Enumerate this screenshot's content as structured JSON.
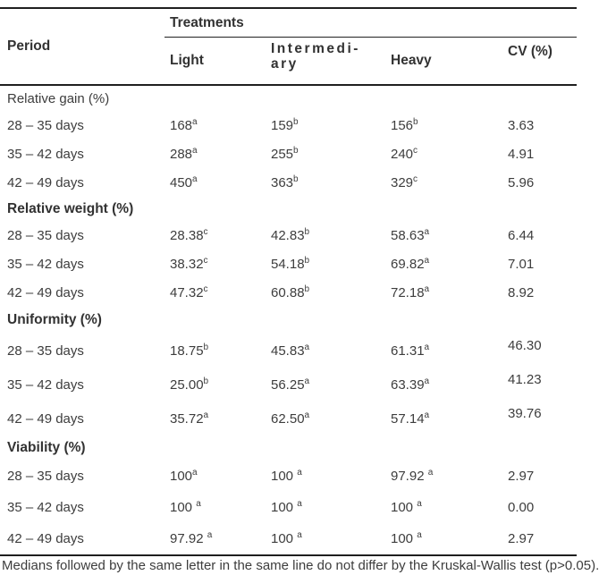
{
  "table": {
    "header": {
      "period": "Period",
      "treatments": "Treatments",
      "columns": [
        "Light",
        "Intermedi-\nary",
        "Heavy",
        "CV (%)"
      ]
    },
    "sections": [
      {
        "title": "Relative gain (%)",
        "bold": false,
        "rows": [
          {
            "period": "28 – 35 days",
            "cells": [
              {
                "v": "168",
                "s": "a"
              },
              {
                "v": "159",
                "s": "b"
              },
              {
                "v": "156",
                "s": "b"
              }
            ],
            "cv": "3.63"
          },
          {
            "period": "35 – 42 days",
            "cells": [
              {
                "v": "288",
                "s": "a"
              },
              {
                "v": "255",
                "s": "b"
              },
              {
                "v": "240",
                "s": "c"
              }
            ],
            "cv": "4.91"
          },
          {
            "period": "42 – 49 days",
            "cells": [
              {
                "v": "450",
                "s": "a"
              },
              {
                "v": "363",
                "s": "b"
              },
              {
                "v": "329",
                "s": "c"
              }
            ],
            "cv": "5.96"
          }
        ]
      },
      {
        "title": "Relative weight (%)",
        "bold": true,
        "rows": [
          {
            "period": "28 – 35 days",
            "cells": [
              {
                "v": "28.38",
                "s": "c"
              },
              {
                "v": "42.83",
                "s": "b"
              },
              {
                "v": "58.63",
                "s": "a"
              }
            ],
            "cv": "6.44"
          },
          {
            "period": "35 – 42 days",
            "cells": [
              {
                "v": "38.32",
                "s": "c"
              },
              {
                "v": "54.18",
                "s": "b"
              },
              {
                "v": "69.82",
                "s": "a"
              }
            ],
            "cv": "7.01"
          },
          {
            "period": "42 – 49 days",
            "cells": [
              {
                "v": "47.32",
                "s": "c"
              },
              {
                "v": "60.88",
                "s": "b"
              },
              {
                "v": "72.18",
                "s": "a"
              }
            ],
            "cv": "8.92"
          }
        ]
      },
      {
        "title": "Uniformity (%)",
        "bold": true,
        "cv_raised": true,
        "rows": [
          {
            "period": "28 – 35 days",
            "cells": [
              {
                "v": "18.75",
                "s": "b"
              },
              {
                "v": "45.83",
                "s": "a"
              },
              {
                "v": "61.31",
                "s": "a"
              }
            ],
            "cv": "46.30"
          },
          {
            "period": "35 – 42 days",
            "cells": [
              {
                "v": "25.00",
                "s": "b"
              },
              {
                "v": "56.25",
                "s": "a"
              },
              {
                "v": "63.39",
                "s": "a"
              }
            ],
            "cv": "41.23"
          },
          {
            "period": "42 – 49 days",
            "cells": [
              {
                "v": "35.72",
                "s": "a"
              },
              {
                "v": "62.50",
                "s": "a"
              },
              {
                "v": "57.14",
                "s": "a"
              }
            ],
            "cv": "39.76"
          }
        ]
      },
      {
        "title": "Viability (%)",
        "bold": true,
        "rows": [
          {
            "period": "28 – 35 days",
            "cells": [
              {
                "v": "100",
                "s": "a"
              },
              {
                "v": "100 ",
                "s": "a"
              },
              {
                "v": "97.92 ",
                "s": "a"
              }
            ],
            "cv": "2.97"
          },
          {
            "period": "35 – 42 days",
            "cells": [
              {
                "v": "100 ",
                "s": "a"
              },
              {
                "v": "100 ",
                "s": "a"
              },
              {
                "v": "100 ",
                "s": "a"
              }
            ],
            "cv": "0.00"
          },
          {
            "period": "42 – 49 days",
            "cells": [
              {
                "v": "97.92 ",
                "s": "a"
              },
              {
                "v": "100 ",
                "s": "a"
              },
              {
                "v": "100 ",
                "s": "a"
              }
            ],
            "cv": "2.97"
          }
        ]
      }
    ],
    "footnote": "Medians followed by the same letter in the same line do not differ by the Kruskal-Wallis test (p>0.05)."
  }
}
